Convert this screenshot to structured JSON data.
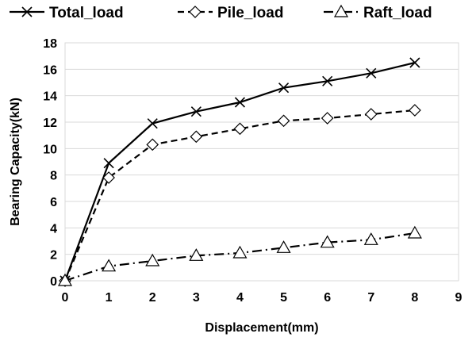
{
  "chart_data": {
    "type": "line",
    "xlabel": "Displacement(mm)",
    "ylabel": "Bearing Capacity(kN)",
    "xlim": [
      0,
      9
    ],
    "ylim": [
      0,
      18
    ],
    "x_ticks": [
      0,
      1,
      2,
      3,
      4,
      5,
      6,
      7,
      8,
      9
    ],
    "y_ticks": [
      0,
      2,
      4,
      6,
      8,
      10,
      12,
      14,
      16,
      18
    ],
    "grid": "horizontal",
    "legend_position": "top",
    "x": [
      0,
      1,
      2,
      3,
      4,
      5,
      6,
      7,
      8
    ],
    "series": [
      {
        "name": "Total_load",
        "values": [
          0,
          8.9,
          11.9,
          12.8,
          13.5,
          14.6,
          15.1,
          15.7,
          16.5
        ],
        "marker": "x",
        "line": "solid",
        "color": "#000000"
      },
      {
        "name": "Pile_load",
        "values": [
          0,
          7.8,
          10.3,
          10.9,
          11.5,
          12.1,
          12.3,
          12.6,
          12.9
        ],
        "marker": "diamond",
        "line": "dashed",
        "color": "#000000"
      },
      {
        "name": "Raft_load",
        "values": [
          0,
          1.1,
          1.5,
          1.9,
          2.1,
          2.5,
          2.9,
          3.1,
          3.6
        ],
        "marker": "triangle",
        "line": "dashdot",
        "color": "#000000"
      }
    ]
  }
}
